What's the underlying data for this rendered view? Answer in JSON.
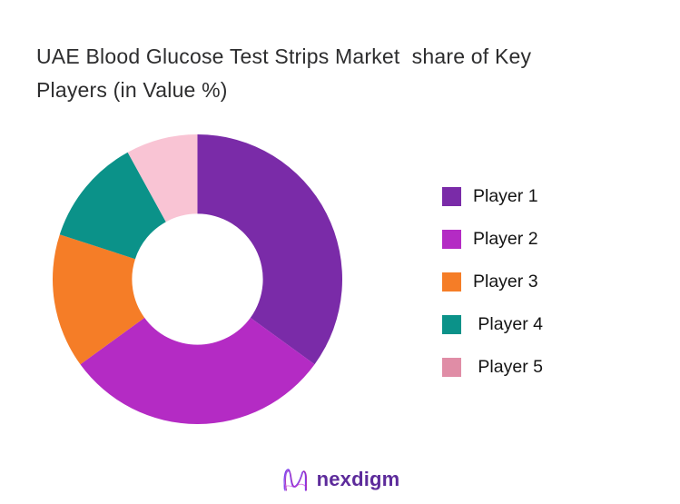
{
  "header": {
    "title_line1": "UAE Blood Glucose Test Strips Market  share of Key",
    "title_line2": "Players (in Value %)"
  },
  "chart_data": {
    "type": "pie",
    "subtype": "donut",
    "title": "UAE Blood Glucose Test Strips Market  share of Key Players (in Value %)",
    "categories": [
      "Player 1",
      "Player 2",
      "Player 3",
      "Player 4",
      "Player 5"
    ],
    "values": [
      35,
      30,
      15,
      12,
      8
    ],
    "unit": "percent of market value",
    "start_angle_deg": 0,
    "direction": "clockwise",
    "inner_radius_ratio": 0.452,
    "slice_colors": [
      "#7a2ba8",
      "#b42bc4",
      "#f57d27",
      "#0b9289",
      "#f9c4d4"
    ],
    "legend_position": "right",
    "data_labels_shown": false
  },
  "legend": {
    "items": [
      {
        "label": "Player 1",
        "color": "#7a2ba8"
      },
      {
        "label": "Player 2",
        "color": "#b42bc4"
      },
      {
        "label": "Player 3",
        "color": "#f57d27"
      },
      {
        "label": " Player 4",
        "color": "#0b9289"
      },
      {
        "label": " Player 5",
        "color": "#e08da6"
      }
    ]
  },
  "footer": {
    "brand_name": "nexdigm",
    "brand_color": "#5d2b9b",
    "logo_icon": "nexdigm-wavy-n-mark"
  }
}
